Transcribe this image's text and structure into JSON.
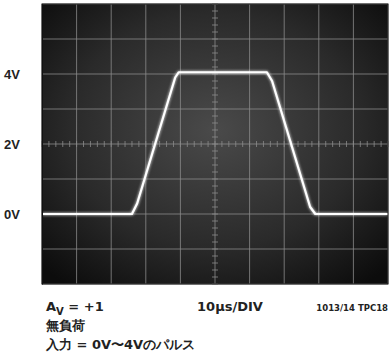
{
  "chart_data": {
    "type": "line",
    "x": [
      0,
      26,
      27.5,
      38.5,
      39.5,
      65,
      66.5,
      77.5,
      79,
      100
    ],
    "values": [
      0,
      0,
      0.3,
      3.9,
      4.05,
      4.05,
      3.8,
      0.2,
      0,
      0
    ],
    "color": "#ffffff",
    "xlim": [
      0,
      100
    ],
    "xticks": [
      0,
      10,
      20,
      30,
      40,
      50,
      60,
      70,
      80,
      90,
      100
    ],
    "ylim": [
      -2,
      6
    ],
    "yticks": [
      {
        "value": 0,
        "label": "0V"
      },
      {
        "value": 2,
        "label": "2V"
      },
      {
        "value": 4,
        "label": "4V"
      }
    ],
    "grid": true,
    "tick_labels": "y",
    "annotations": [
      "AV = +1",
      "10μs/DIV",
      "1013/14 TPC18",
      "無負荷",
      "入力 = 0V〜4Vのパルス"
    ]
  }
}
